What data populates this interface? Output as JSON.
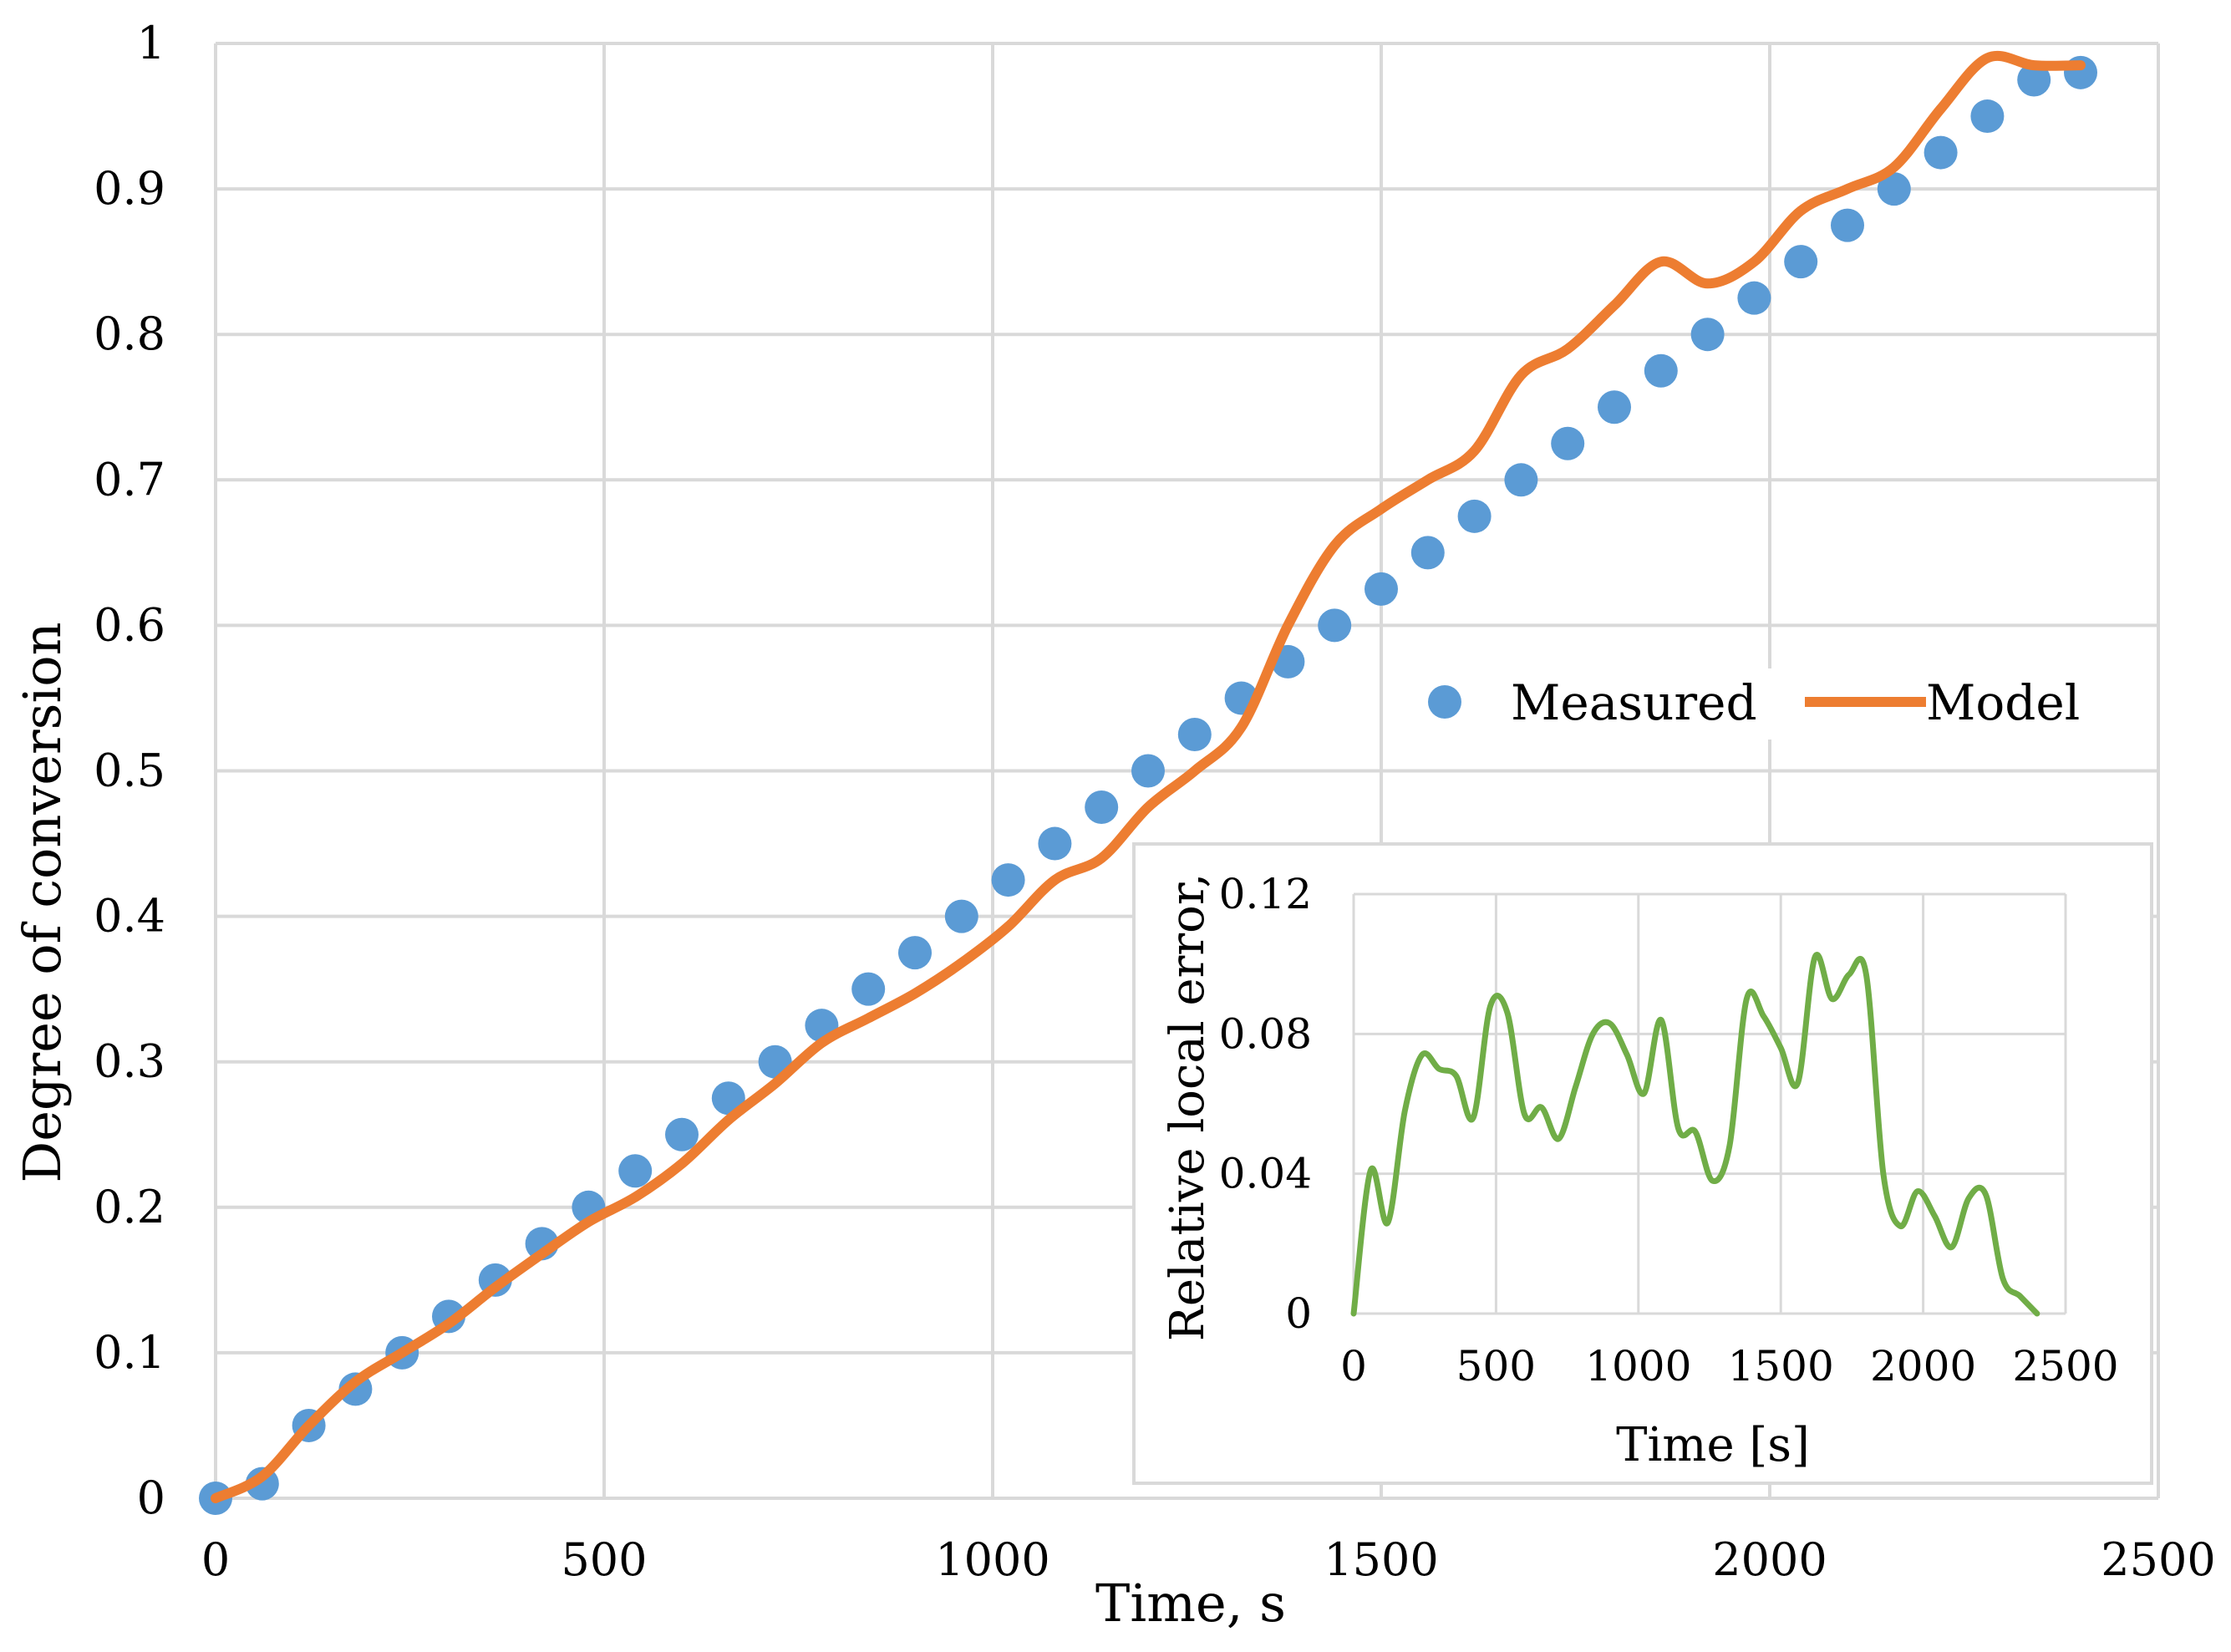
{
  "chart_data": [
    {
      "type": "line",
      "role": "main",
      "title": "",
      "xlabel": "Time, s",
      "ylabel": "Degree of conversion",
      "xlim": [
        0,
        2500
      ],
      "ylim": [
        0,
        1
      ],
      "xticks": [
        0,
        500,
        1000,
        1500,
        2000,
        2500
      ],
      "yticks": [
        0,
        0.1,
        0.2,
        0.3,
        0.4,
        0.5,
        0.6,
        0.7,
        0.8,
        0.9,
        1
      ],
      "ytick_labels": [
        "0",
        "0.1",
        "0.2",
        "0.3",
        "0.4",
        "0.5",
        "0.6",
        "0.7",
        "0.8",
        "0.9",
        "1"
      ],
      "grid": true,
      "legend_position": "center-right",
      "series": [
        {
          "name": "Measured",
          "style": "markers",
          "color": "#5B9BD5",
          "x": [
            0,
            60,
            120,
            180,
            240,
            300,
            360,
            420,
            480,
            540,
            600,
            660,
            720,
            780,
            840,
            900,
            960,
            1020,
            1080,
            1140,
            1200,
            1260,
            1320,
            1380,
            1440,
            1500,
            1560,
            1620,
            1680,
            1740,
            1800,
            1860,
            1920,
            1980,
            2040,
            2100,
            2160,
            2220,
            2280,
            2340,
            2400
          ],
          "y": [
            0,
            0.01,
            0.05,
            0.075,
            0.1,
            0.125,
            0.15,
            0.175,
            0.2,
            0.225,
            0.25,
            0.275,
            0.3,
            0.325,
            0.35,
            0.375,
            0.4,
            0.425,
            0.45,
            0.475,
            0.5,
            0.525,
            0.55,
            0.575,
            0.6,
            0.625,
            0.65,
            0.675,
            0.7,
            0.725,
            0.75,
            0.775,
            0.8,
            0.825,
            0.85,
            0.875,
            0.9,
            0.925,
            0.95,
            0.975,
            0.98
          ]
        },
        {
          "name": "Model",
          "style": "line",
          "color": "#ED7D31",
          "x": [
            0,
            60,
            120,
            180,
            240,
            300,
            360,
            420,
            480,
            540,
            600,
            660,
            720,
            780,
            840,
            900,
            960,
            1020,
            1080,
            1140,
            1200,
            1260,
            1320,
            1380,
            1440,
            1500,
            1560,
            1620,
            1680,
            1740,
            1800,
            1860,
            1920,
            1980,
            2040,
            2100,
            2160,
            2220,
            2280,
            2340,
            2400
          ],
          "y": [
            0,
            0.015,
            0.05,
            0.08,
            0.1,
            0.12,
            0.145,
            0.168,
            0.19,
            0.207,
            0.23,
            0.26,
            0.285,
            0.313,
            0.33,
            0.347,
            0.368,
            0.393,
            0.425,
            0.44,
            0.475,
            0.5,
            0.53,
            0.6,
            0.655,
            0.68,
            0.7,
            0.72,
            0.772,
            0.79,
            0.82,
            0.85,
            0.835,
            0.85,
            0.885,
            0.9,
            0.915,
            0.955,
            0.99,
            0.985,
            0.985
          ]
        }
      ]
    },
    {
      "type": "line",
      "role": "inset",
      "title": "",
      "xlabel": "Time [s]",
      "ylabel": "Relative local error,",
      "xlim": [
        0,
        2500
      ],
      "ylim": [
        0,
        0.12
      ],
      "xticks": [
        0,
        500,
        1000,
        1500,
        2000,
        2500
      ],
      "yticks": [
        0,
        0.04,
        0.08,
        0.12
      ],
      "ytick_labels": [
        "0",
        "0.04",
        "0.08",
        "0.12"
      ],
      "grid": true,
      "series": [
        {
          "name": "Relative local error",
          "style": "line",
          "color": "#70AD47",
          "x": [
            0,
            60,
            120,
            180,
            240,
            300,
            360,
            420,
            480,
            540,
            600,
            660,
            720,
            780,
            840,
            900,
            960,
            1020,
            1080,
            1140,
            1200,
            1260,
            1320,
            1380,
            1440,
            1500,
            1560,
            1620,
            1680,
            1740,
            1800,
            1860,
            1920,
            1980,
            2040,
            2100,
            2160,
            2220,
            2280,
            2340,
            2400
          ],
          "y": [
            0,
            0.041,
            0.026,
            0.058,
            0.074,
            0.07,
            0.068,
            0.056,
            0.088,
            0.086,
            0.057,
            0.059,
            0.05,
            0.065,
            0.08,
            0.083,
            0.074,
            0.063,
            0.084,
            0.053,
            0.052,
            0.038,
            0.048,
            0.09,
            0.085,
            0.076,
            0.066,
            0.102,
            0.09,
            0.097,
            0.097,
            0.04,
            0.025,
            0.035,
            0.028,
            0.019,
            0.033,
            0.034,
            0.01,
            0.005,
            0
          ]
        }
      ]
    }
  ]
}
